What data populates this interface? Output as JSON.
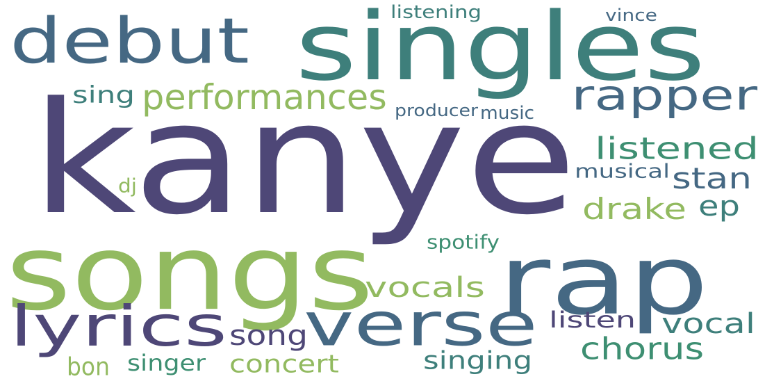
{
  "words": [
    {
      "id": "kanye",
      "text": "kanye",
      "color": "#4e4777"
    },
    {
      "id": "songs",
      "text": "songs",
      "color": "#92ba60"
    },
    {
      "id": "rap",
      "text": "rap",
      "color": "#456883"
    },
    {
      "id": "singles",
      "text": "singles",
      "color": "#3e7f7b"
    },
    {
      "id": "debut",
      "text": "debut",
      "color": "#456883"
    },
    {
      "id": "verse",
      "text": "verse",
      "color": "#456883"
    },
    {
      "id": "lyrics",
      "text": "lyrics",
      "color": "#4e4777"
    },
    {
      "id": "rapper",
      "text": "rapper",
      "color": "#456883"
    },
    {
      "id": "performances",
      "text": "performances",
      "color": "#92ba60"
    },
    {
      "id": "listened",
      "text": "listened",
      "color": "#3e8f72"
    },
    {
      "id": "vocals",
      "text": "vocals",
      "color": "#92ba60"
    },
    {
      "id": "drake",
      "text": "drake",
      "color": "#92ba60"
    },
    {
      "id": "stan",
      "text": "stan",
      "color": "#456883"
    },
    {
      "id": "chorus",
      "text": "chorus",
      "color": "#3e8f72"
    },
    {
      "id": "vocal",
      "text": "vocal",
      "color": "#3e7f7b"
    },
    {
      "id": "song",
      "text": "song",
      "color": "#4e4777"
    },
    {
      "id": "ep",
      "text": "ep",
      "color": "#3e7f7b"
    },
    {
      "id": "sing",
      "text": "sing",
      "color": "#3e7f7b"
    },
    {
      "id": "singing",
      "text": "singing",
      "color": "#3e7f7b"
    },
    {
      "id": "concert",
      "text": "concert",
      "color": "#92ba60"
    },
    {
      "id": "singer",
      "text": "singer",
      "color": "#3e8f72"
    },
    {
      "id": "listen",
      "text": "listen",
      "color": "#4e4777"
    },
    {
      "id": "musical",
      "text": "musical",
      "color": "#456883"
    },
    {
      "id": "bon",
      "text": "bon",
      "color": "#92ba60"
    },
    {
      "id": "spotify",
      "text": "spotify",
      "color": "#3e8f72"
    },
    {
      "id": "producer",
      "text": "producer",
      "color": "#456883"
    },
    {
      "id": "music",
      "text": "music",
      "color": "#456883"
    },
    {
      "id": "listening",
      "text": "listening",
      "color": "#3e7f7b"
    },
    {
      "id": "vince",
      "text": "vince",
      "color": "#456883"
    },
    {
      "id": "dj",
      "text": "dj",
      "color": "#92ba60"
    }
  ]
}
